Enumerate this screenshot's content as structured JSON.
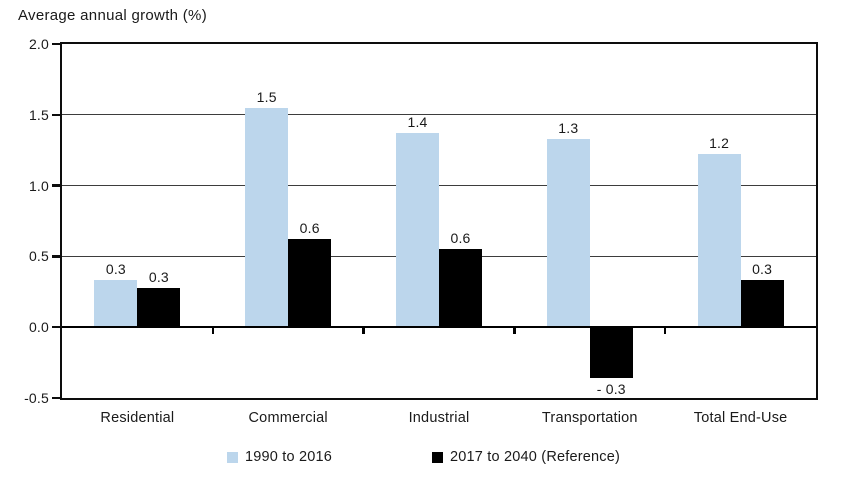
{
  "chart_data": {
    "type": "bar",
    "title": "Average annual growth (%)",
    "categories": [
      "Residential",
      "Commercial",
      "Industrial",
      "Transportation",
      "Total End-Use"
    ],
    "series": [
      {
        "name": "1990 to 2016",
        "color": "#BCD6EC",
        "values": [
          0.3,
          1.5,
          1.4,
          1.3,
          1.2
        ],
        "value_labels": [
          "0.3",
          "1.5",
          "1.4",
          "1.3",
          "1.2"
        ],
        "drawn_values": [
          0.33,
          1.55,
          1.37,
          1.33,
          1.22
        ]
      },
      {
        "name": "2017 to 2040 (Reference)",
        "color": "#000000",
        "values": [
          0.3,
          0.6,
          0.6,
          -0.3,
          0.3
        ],
        "value_labels": [
          "0.3",
          "0.6",
          "0.6",
          "- 0.3",
          "0.3"
        ],
        "drawn_values": [
          0.28,
          0.62,
          0.55,
          -0.35,
          0.33
        ]
      }
    ],
    "ylabel": "Average annual growth (%)",
    "xlabel": "",
    "y_axis": {
      "min": -0.5,
      "max": 2.0,
      "step": 0.5,
      "tick_labels": [
        "2.0",
        "1.5",
        "1.0",
        "0.5",
        "0.0",
        "-0.5"
      ]
    },
    "grid": true,
    "gridline_values": [
      1.5,
      1.0,
      0.5
    ],
    "zero_line": true,
    "legend_position": "bottom"
  }
}
